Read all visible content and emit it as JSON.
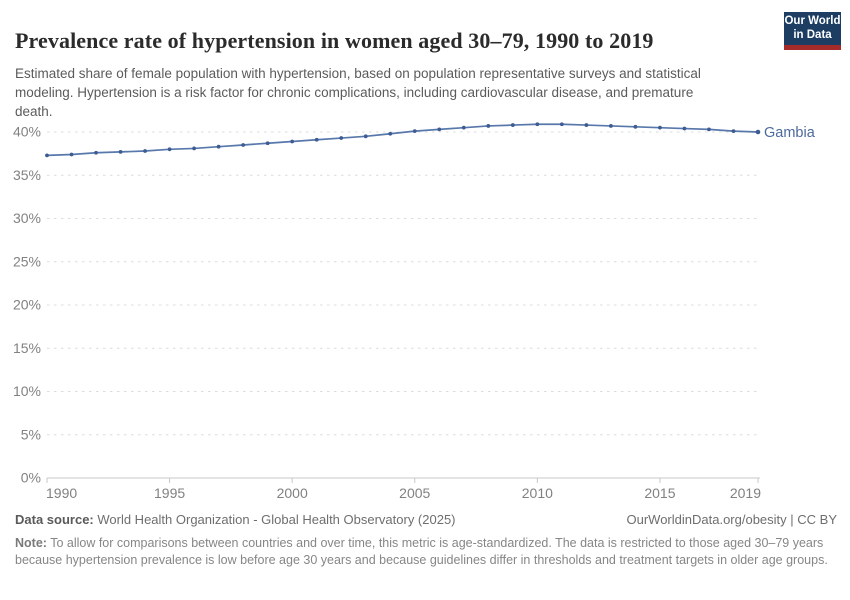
{
  "header": {
    "title": "Prevalence rate of hypertension in women aged 30–79, 1990 to 2019",
    "subtitle": "Estimated share of female population with hypertension, based on population representative surveys and statistical modeling. Hypertension is a risk factor for chronic complications, including cardiovascular disease, and premature death.",
    "logo": {
      "line1": "Our World",
      "line2": "in Data"
    }
  },
  "chart_data": {
    "type": "line",
    "title": "Prevalence rate of hypertension in women aged 30–79, 1990 to 2019",
    "x": [
      1990,
      1991,
      1992,
      1993,
      1994,
      1995,
      1996,
      1997,
      1998,
      1999,
      2000,
      2001,
      2002,
      2003,
      2004,
      2005,
      2006,
      2007,
      2008,
      2009,
      2010,
      2011,
      2012,
      2013,
      2014,
      2015,
      2016,
      2017,
      2018,
      2019
    ],
    "series": [
      {
        "name": "Gambia",
        "values": [
          37.3,
          37.4,
          37.6,
          37.7,
          37.8,
          38.0,
          38.1,
          38.3,
          38.5,
          38.7,
          38.9,
          39.1,
          39.3,
          39.5,
          39.8,
          40.1,
          40.3,
          40.5,
          40.7,
          40.8,
          40.9,
          40.9,
          40.8,
          40.7,
          40.6,
          40.5,
          40.4,
          40.3,
          40.1,
          40.0
        ]
      }
    ],
    "xlabel": "",
    "ylabel": "",
    "ylim": [
      0,
      42
    ],
    "xlim": [
      1990,
      2019
    ],
    "yticks": [
      0,
      5,
      10,
      15,
      20,
      25,
      30,
      35,
      40
    ],
    "ytick_suffix": "%",
    "xticks": [
      1990,
      1995,
      2000,
      2005,
      2010,
      2015,
      2019
    ],
    "grid": "horizontal-dashed",
    "legend_position": "end-of-line-label"
  },
  "footer": {
    "datasource_label": "Data source:",
    "datasource_text": " World Health Organization - Global Health Observatory (2025)",
    "attribution": "OurWorldinData.org/obesity | CC BY",
    "note_label": "Note:",
    "note_text": " To allow for comparisons between countries and over time, this metric is age-standardized. The data is restricted to those aged 30–79 years because hypertension prevalence is low before age 30 years and because guidelines differ in thresholds and treatment targets in older age groups."
  },
  "colors": {
    "line": "#5878ab",
    "point": "#3d5c94",
    "series_label": "#4c6a9c",
    "grid": "#dcdcdc",
    "axis": "#c8c8c8",
    "tick_text": "#818181",
    "logo_bg": "#1d3d63",
    "logo_stripe": "#a52a2a"
  }
}
